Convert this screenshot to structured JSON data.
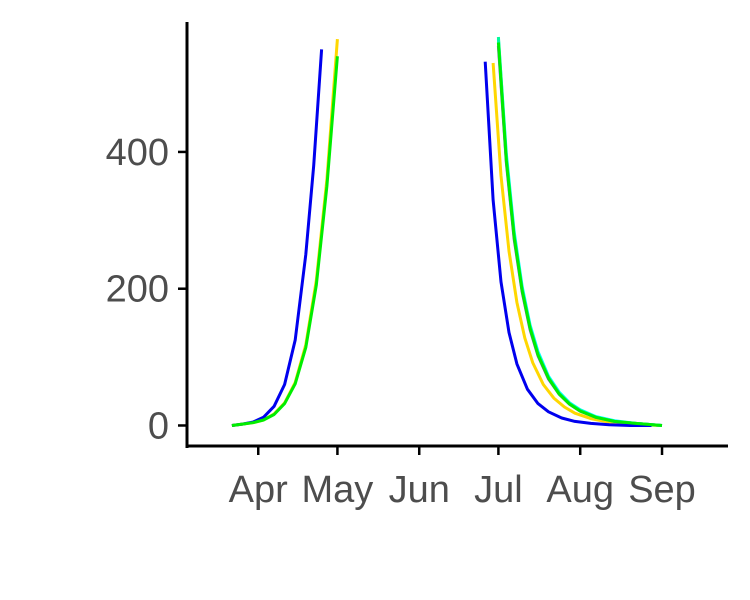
{
  "chart_data": {
    "type": "line",
    "title": "",
    "xlabel": "",
    "ylabel": "",
    "x_axis": {
      "type": "date",
      "range": [
        "2000-03-05",
        "2000-09-26"
      ],
      "ticks": [
        {
          "date": "2000-04-01",
          "label": "Apr"
        },
        {
          "date": "2000-05-01",
          "label": "May"
        },
        {
          "date": "2000-06-01",
          "label": "Jun"
        },
        {
          "date": "2000-07-01",
          "label": "Jul"
        },
        {
          "date": "2000-08-01",
          "label": "Aug"
        },
        {
          "date": "2000-09-01",
          "label": "Sep"
        }
      ]
    },
    "y_axis": {
      "range": [
        -30,
        590
      ],
      "ticks": [
        {
          "value": 0,
          "label": "0"
        },
        {
          "value": 200,
          "label": "200"
        },
        {
          "value": 400,
          "label": "400"
        }
      ]
    },
    "grid": false,
    "legend": "none",
    "series": [
      {
        "color": "#FFD700",
        "segments": [
          {
            "x": [
              "2000-03-22",
              "2000-03-26",
              "2000-03-30",
              "2000-04-03",
              "2000-04-07",
              "2000-04-11",
              "2000-04-15",
              "2000-04-19",
              "2000-04-23",
              "2000-04-27",
              "2000-05-01"
            ],
            "y": [
              0,
              2,
              4,
              8,
              17,
              33,
              63,
              118,
              212,
              360,
              565
            ]
          },
          {
            "x": [
              "2000-06-29",
              "2000-07-02",
              "2000-07-05",
              "2000-07-08",
              "2000-07-11",
              "2000-07-14",
              "2000-07-18",
              "2000-07-22",
              "2000-07-26",
              "2000-07-30",
              "2000-08-05",
              "2000-08-12",
              "2000-08-20",
              "2000-08-31"
            ],
            "y": [
              530,
              365,
              255,
              180,
              128,
              92,
              60,
              40,
              27,
              18,
              10,
              5,
              2,
              0
            ]
          }
        ]
      },
      {
        "color": "#9932CC",
        "segments": [
          {
            "x": [
              "2000-07-01",
              "2000-07-04",
              "2000-07-07",
              "2000-07-10",
              "2000-07-13",
              "2000-07-16",
              "2000-07-20",
              "2000-07-24",
              "2000-07-28",
              "2000-08-01",
              "2000-08-07",
              "2000-08-14",
              "2000-08-22",
              "2000-09-01"
            ],
            "y": [
              555,
              385,
              272,
              195,
              140,
              102,
              68,
              46,
              31,
              21,
              12,
              6,
              3,
              0
            ]
          }
        ]
      },
      {
        "color": "#00FFFF",
        "segments": [
          {
            "x": [
              "2000-07-01",
              "2000-07-04",
              "2000-07-07",
              "2000-07-10",
              "2000-07-13",
              "2000-07-16",
              "2000-07-20",
              "2000-07-24",
              "2000-07-28",
              "2000-08-01",
              "2000-08-07",
              "2000-08-14",
              "2000-08-22",
              "2000-09-01"
            ],
            "y": [
              565,
              398,
              283,
              203,
              147,
              108,
              72,
              49,
              33,
              23,
              13,
              7,
              3,
              0
            ]
          }
        ]
      },
      {
        "color": "#00FA9A",
        "segments": [
          {
            "x": [
              "2000-07-01",
              "2000-07-04",
              "2000-07-07",
              "2000-07-10",
              "2000-07-13",
              "2000-07-16",
              "2000-07-20",
              "2000-07-24",
              "2000-07-28",
              "2000-08-01",
              "2000-08-07",
              "2000-08-14",
              "2000-08-22",
              "2000-09-01"
            ],
            "y": [
              568,
              392,
              278,
              199,
              144,
              105,
              70,
              47,
              32,
              22,
              12,
              6,
              3,
              0
            ]
          }
        ]
      },
      {
        "color": "#0000EE",
        "segments": [
          {
            "x": [
              "2000-03-22",
              "2000-03-26",
              "2000-03-30",
              "2000-04-03",
              "2000-04-07",
              "2000-04-11",
              "2000-04-15",
              "2000-04-19",
              "2000-04-22",
              "2000-04-25"
            ],
            "y": [
              0,
              2,
              5,
              12,
              28,
              60,
              125,
              250,
              380,
              550
            ]
          },
          {
            "x": [
              "2000-06-26",
              "2000-06-29",
              "2000-07-02",
              "2000-07-05",
              "2000-07-08",
              "2000-07-12",
              "2000-07-16",
              "2000-07-20",
              "2000-07-25",
              "2000-07-30",
              "2000-08-05",
              "2000-08-12",
              "2000-08-20",
              "2000-08-28"
            ],
            "y": [
              532,
              330,
              210,
              136,
              90,
              53,
              32,
              20,
              11,
              6,
              3,
              1,
              0,
              0
            ]
          }
        ]
      },
      {
        "color": "#00EE00",
        "segments": [
          {
            "x": [
              "2000-03-22",
              "2000-03-26",
              "2000-03-30",
              "2000-04-03",
              "2000-04-07",
              "2000-04-11",
              "2000-04-15",
              "2000-04-19",
              "2000-04-23",
              "2000-04-27",
              "2000-05-01"
            ],
            "y": [
              0,
              2,
              4,
              8,
              16,
              32,
              61,
              114,
              205,
              350,
              540
            ]
          },
          {
            "x": [
              "2000-07-01",
              "2000-07-04",
              "2000-07-07",
              "2000-07-10",
              "2000-07-13",
              "2000-07-16",
              "2000-07-20",
              "2000-07-24",
              "2000-07-28",
              "2000-08-01",
              "2000-08-07",
              "2000-08-14",
              "2000-08-22",
              "2000-09-01"
            ],
            "y": [
              560,
              388,
              275,
              197,
              142,
              103,
              69,
              46,
              31,
              21,
              12,
              6,
              3,
              0
            ]
          }
        ]
      }
    ]
  }
}
